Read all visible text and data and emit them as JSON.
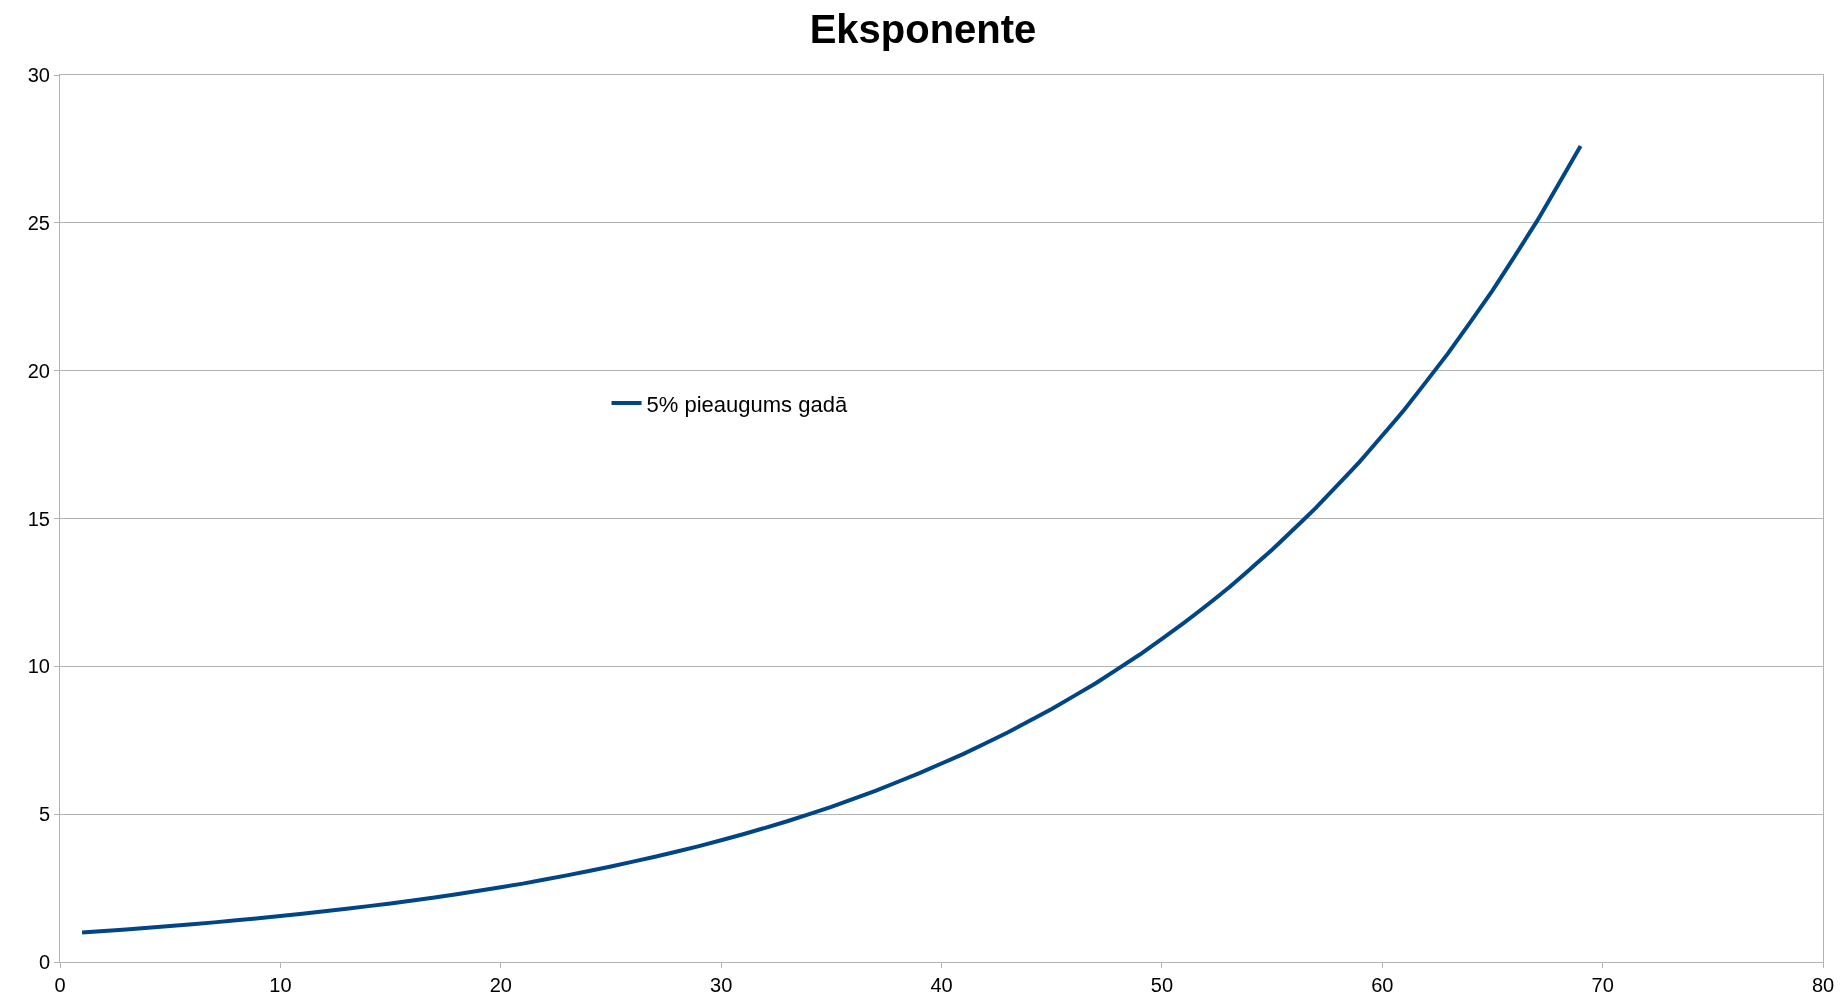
{
  "chart_data": {
    "type": "line",
    "title": "Eksponente",
    "x": [
      1,
      3,
      5,
      7,
      9,
      11,
      13,
      15,
      17,
      19,
      21,
      23,
      25,
      27,
      29,
      31,
      33,
      35,
      37,
      39,
      41,
      43,
      45,
      47,
      49,
      51,
      53,
      55,
      57,
      59,
      61,
      63,
      65,
      67,
      69
    ],
    "series": [
      {
        "name": "5% pieaugums gadā",
        "color": "#004586",
        "values": [
          1.0,
          1.1,
          1.22,
          1.34,
          1.48,
          1.63,
          1.8,
          1.98,
          2.18,
          2.41,
          2.65,
          2.93,
          3.23,
          3.56,
          3.92,
          4.32,
          4.76,
          5.25,
          5.79,
          6.39,
          7.04,
          7.76,
          8.56,
          9.43,
          10.4,
          11.47,
          12.64,
          13.94,
          15.37,
          16.94,
          18.68,
          20.6,
          22.71,
          25.03,
          27.6
        ]
      }
    ],
    "xlim": [
      0,
      80
    ],
    "xticks": [
      0,
      10,
      20,
      30,
      40,
      50,
      60,
      70,
      80
    ],
    "ylim": [
      0,
      30
    ],
    "yticks": [
      0,
      5,
      10,
      15,
      20,
      25,
      30
    ],
    "grid": "y",
    "legend": "left",
    "marker": "none",
    "line_style": "solid"
  }
}
